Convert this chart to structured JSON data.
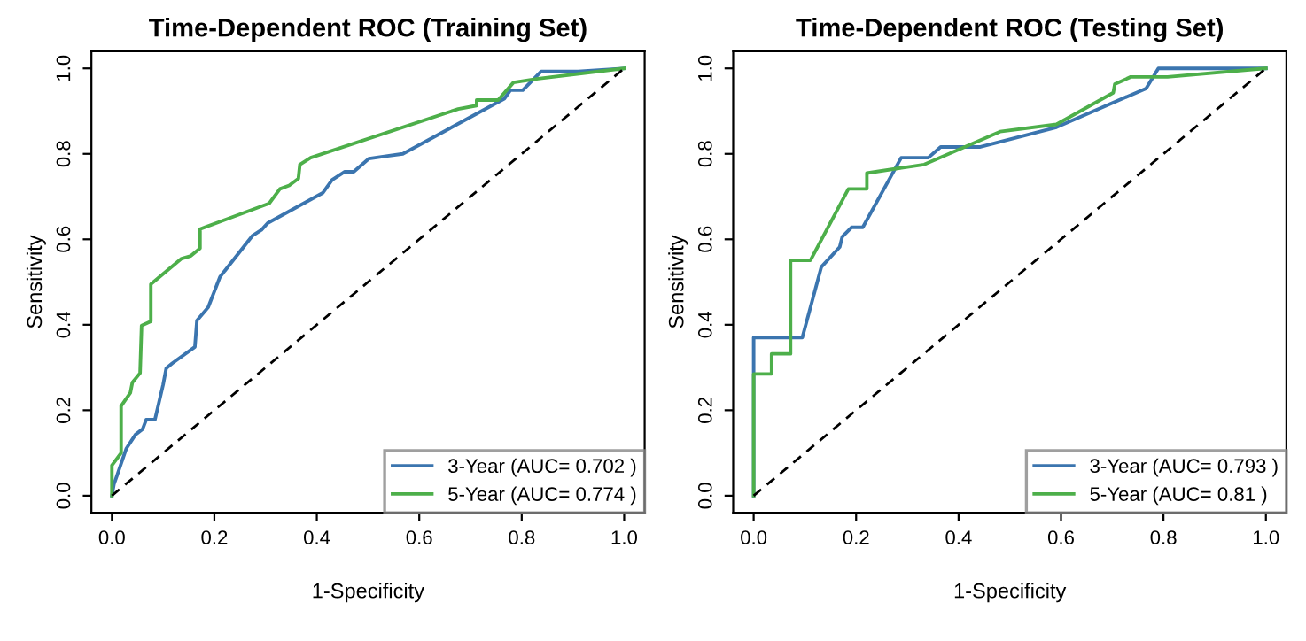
{
  "chart_data": [
    {
      "type": "line",
      "title": "Time-Dependent ROC (Training Set)",
      "xlabel": "1-Specificity",
      "ylabel": "Sensitivity",
      "xlim": [
        -0.04,
        1.04
      ],
      "ylim": [
        -0.04,
        1.04
      ],
      "xticks": [
        {
          "value": 0,
          "label": "0.0"
        },
        {
          "value": 0.2,
          "label": "0.2"
        },
        {
          "value": 0.4,
          "label": "0.4"
        },
        {
          "value": 0.6,
          "label": "0.6"
        },
        {
          "value": 0.8,
          "label": "0.8"
        },
        {
          "value": 1,
          "label": "1.0"
        }
      ],
      "yticks": [
        {
          "value": 0,
          "label": "0.0"
        },
        {
          "value": 0.2,
          "label": "0.2"
        },
        {
          "value": 0.4,
          "label": "0.4"
        },
        {
          "value": 0.6,
          "label": "0.6"
        },
        {
          "value": 0.8,
          "label": "0.8"
        },
        {
          "value": 1,
          "label": "1.0"
        }
      ],
      "grid": false,
      "legend": "bottom right",
      "marker": "none",
      "series": [
        {
          "name": "3-Year (AUC= 0.702 )",
          "color": "#3b75af",
          "line_style": "solid",
          "x": [
            0,
            0.004,
            0.01,
            0.028,
            0.046,
            0.06,
            0.067,
            0.084,
            0.1,
            0.106,
            0.118,
            0.162,
            0.166,
            0.188,
            0.211,
            0.274,
            0.292,
            0.304,
            0.412,
            0.43,
            0.454,
            0.472,
            0.502,
            0.538,
            0.568,
            0.766,
            0.778,
            0.802,
            0.838,
            0.91,
            1
          ],
          "values": [
            0,
            0.027,
            0.047,
            0.11,
            0.143,
            0.156,
            0.178,
            0.178,
            0.26,
            0.298,
            0.31,
            0.348,
            0.41,
            0.441,
            0.512,
            0.608,
            0.622,
            0.638,
            0.709,
            0.739,
            0.758,
            0.758,
            0.789,
            0.795,
            0.8,
            0.929,
            0.949,
            0.949,
            0.993,
            0.993,
            1
          ]
        },
        {
          "name": "5-Year (AUC= 0.774 )",
          "color": "#4daf4a",
          "line_style": "solid",
          "x": [
            0,
            0,
            0.018,
            0.018,
            0.036,
            0.04,
            0.055,
            0.058,
            0.076,
            0.076,
            0.136,
            0.154,
            0.172,
            0.172,
            0.307,
            0.328,
            0.346,
            0.364,
            0.367,
            0.388,
            0.676,
            0.712,
            0.712,
            0.754,
            0.784,
            0.832,
            1
          ],
          "values": [
            0,
            0.071,
            0.1,
            0.21,
            0.241,
            0.265,
            0.287,
            0.398,
            0.408,
            0.495,
            0.555,
            0.561,
            0.579,
            0.624,
            0.684,
            0.718,
            0.726,
            0.742,
            0.775,
            0.791,
            0.905,
            0.913,
            0.926,
            0.926,
            0.967,
            0.976,
            1
          ]
        },
        {
          "color": "#000000",
          "line_style": "dashed",
          "x": [
            0,
            1
          ],
          "values": [
            0,
            1
          ]
        }
      ]
    },
    {
      "type": "line",
      "title": "Time-Dependent ROC (Testing Set)",
      "xlabel": "1-Specificity",
      "ylabel": "Sensitivity",
      "xlim": [
        -0.04,
        1.04
      ],
      "ylim": [
        -0.04,
        1.04
      ],
      "xticks": [
        {
          "value": 0,
          "label": "0.0"
        },
        {
          "value": 0.2,
          "label": "0.2"
        },
        {
          "value": 0.4,
          "label": "0.4"
        },
        {
          "value": 0.6,
          "label": "0.6"
        },
        {
          "value": 0.8,
          "label": "0.8"
        },
        {
          "value": 1,
          "label": "1.0"
        }
      ],
      "yticks": [
        {
          "value": 0,
          "label": "0.0"
        },
        {
          "value": 0.2,
          "label": "0.2"
        },
        {
          "value": 0.4,
          "label": "0.4"
        },
        {
          "value": 0.6,
          "label": "0.6"
        },
        {
          "value": 0.8,
          "label": "0.8"
        },
        {
          "value": 1,
          "label": "1.0"
        }
      ],
      "grid": false,
      "legend": "bottom right",
      "marker": "none",
      "series": [
        {
          "name": "3-Year (AUC= 0.793 )",
          "color": "#3b75af",
          "line_style": "solid",
          "x": [
            0,
            0,
            0.095,
            0.132,
            0.168,
            0.173,
            0.191,
            0.213,
            0.288,
            0.341,
            0.365,
            0.441,
            0.591,
            0.766,
            0.79,
            1
          ],
          "values": [
            0,
            0.37,
            0.37,
            0.535,
            0.582,
            0.606,
            0.628,
            0.628,
            0.791,
            0.791,
            0.816,
            0.816,
            0.862,
            0.953,
            1,
            1
          ]
        },
        {
          "name": "5-Year (AUC= 0.81 )",
          "color": "#4daf4a",
          "line_style": "solid",
          "x": [
            0,
            0,
            0.035,
            0.035,
            0.072,
            0.072,
            0.111,
            0.185,
            0.221,
            0.221,
            0.333,
            0.481,
            0.591,
            0.702,
            0.705,
            0.736,
            0.808,
            1
          ],
          "values": [
            0,
            0.285,
            0.285,
            0.332,
            0.332,
            0.551,
            0.551,
            0.718,
            0.718,
            0.755,
            0.775,
            0.852,
            0.869,
            0.943,
            0.963,
            0.98,
            0.98,
            1
          ]
        },
        {
          "color": "#000000",
          "line_style": "dashed",
          "x": [
            0,
            1
          ],
          "values": [
            0,
            1
          ]
        }
      ]
    }
  ]
}
